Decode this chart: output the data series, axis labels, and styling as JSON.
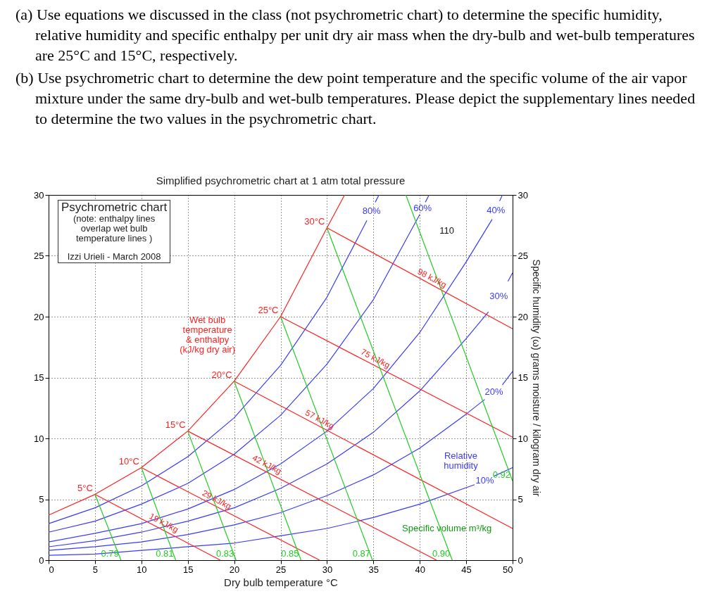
{
  "chart_data": {
    "type": "line",
    "title": "Simplified psychrometric chart at 1 atm total pressure",
    "xlabel": "Dry bulb temperature °C",
    "y2label": "Specific humidity (ω) grams moisture / kilogram dry air",
    "xlim": [
      0,
      50
    ],
    "xticks": [
      0,
      5,
      10,
      15,
      20,
      25,
      30,
      35,
      40,
      45,
      50
    ],
    "ylim": [
      0,
      30
    ],
    "yticks": [
      0,
      5,
      10,
      15,
      20,
      25,
      30
    ],
    "y2lim": [
      0,
      30
    ],
    "y2ticks": [
      0,
      5,
      10,
      15,
      20,
      25,
      30
    ],
    "grid": true,
    "series": [
      {
        "color": "#ff2020",
        "x": [
          0,
          5,
          10,
          15,
          20,
          25,
          30,
          31.9
        ],
        "values": [
          3.7,
          5.4,
          7.6,
          10.6,
          14.7,
          20.0,
          27.3,
          30
        ]
      },
      {
        "name": "80%",
        "color": "#3a3aff",
        "x": [
          0,
          5,
          10,
          15,
          20,
          25,
          30,
          34.3,
          34.8,
          35.2,
          35.6
        ],
        "values": [
          3.0,
          4.3,
          6.1,
          8.5,
          11.7,
          16.0,
          21.6,
          27.9,
          null,
          29.4,
          30
        ]
      },
      {
        "name": "60%",
        "color": "#3a3aff",
        "x": [
          0,
          5,
          10,
          15,
          20,
          25,
          30,
          35,
          40,
          40.3,
          40.6,
          41
        ],
        "values": [
          2.3,
          3.2,
          4.6,
          6.3,
          8.7,
          11.9,
          16.1,
          21.4,
          28.4,
          null,
          29.4,
          30
        ]
      },
      {
        "name": "40%",
        "color": "#3a3aff",
        "x": [
          0,
          5,
          10,
          15,
          20,
          25,
          30,
          35,
          40,
          45,
          47.8,
          48.2,
          48.6,
          48.9
        ],
        "values": [
          1.5,
          2.2,
          3.0,
          4.2,
          5.8,
          7.9,
          10.6,
          14.1,
          18.7,
          24.5,
          28.0,
          null,
          29.5,
          30
        ]
      },
      {
        "name": "30%",
        "color": "#3a3aff",
        "x": [
          0,
          5,
          10,
          15,
          20,
          25,
          30,
          35,
          40,
          45,
          47.4,
          48.5,
          49.5,
          50
        ],
        "values": [
          1.1,
          1.6,
          2.3,
          3.2,
          4.3,
          5.9,
          7.9,
          10.5,
          13.9,
          18.2,
          20.4,
          null,
          22.9,
          23.6
        ]
      },
      {
        "name": "20%",
        "color": "#3a3aff",
        "x": [
          0,
          5,
          10,
          15,
          20,
          25,
          30,
          35,
          40,
          45,
          47.0,
          48,
          48.9,
          50
        ],
        "values": [
          0.8,
          1.1,
          1.5,
          2.1,
          2.9,
          3.9,
          5.3,
          7.0,
          9.2,
          12.0,
          13.2,
          null,
          14.4,
          15.5
        ]
      },
      {
        "name": "10%",
        "color": "#3a3aff",
        "x": [
          0,
          5,
          10,
          15,
          20,
          25,
          30,
          35,
          40,
          45.9,
          47,
          48,
          50
        ],
        "values": [
          0.4,
          0.5,
          0.8,
          1.1,
          1.4,
          2.0,
          2.6,
          3.5,
          4.6,
          6.2,
          null,
          6.9,
          7.6
        ]
      },
      {
        "name": "5°C",
        "color": "#ff2020",
        "x": [
          5,
          18.5
        ],
        "values": [
          5.4,
          0
        ]
      },
      {
        "name": "10°C",
        "color": "#ff2020",
        "x": [
          10,
          29.2
        ],
        "values": [
          7.6,
          0
        ]
      },
      {
        "name": "15°C",
        "color": "#ff2020",
        "x": [
          15,
          41.8
        ],
        "values": [
          10.6,
          0
        ]
      },
      {
        "name": "20°C",
        "color": "#ff2020",
        "x": [
          20,
          50
        ],
        "values": [
          14.7,
          2.6
        ]
      },
      {
        "name": "25°C",
        "color": "#ff2020",
        "x": [
          25,
          50
        ],
        "values": [
          20.0,
          10.1
        ]
      },
      {
        "name": "30°C",
        "color": "#ff2020",
        "x": [
          30,
          50
        ],
        "values": [
          27.3,
          19.0
        ]
      },
      {
        "name": "0.79",
        "color": "#22cc22",
        "x": [
          7.8,
          5.0
        ],
        "values": [
          0,
          5.4
        ]
      },
      {
        "name": "0.81",
        "color": "#22cc22",
        "x": [
          13.7,
          10.0
        ],
        "values": [
          0,
          7.6
        ]
      },
      {
        "name": "0.83",
        "color": "#22cc22",
        "x": [
          20.2,
          15.0
        ],
        "values": [
          0,
          10.6
        ]
      },
      {
        "name": "0.85",
        "color": "#22cc22",
        "x": [
          27.2,
          20.0
        ],
        "values": [
          0,
          14.7
        ]
      },
      {
        "name": "0.87",
        "color": "#22cc22",
        "x": [
          34.9,
          25.0
        ],
        "values": [
          0,
          20.0
        ]
      },
      {
        "name": "0.90",
        "color": "#22cc22",
        "x": [
          43.5,
          30.0
        ],
        "values": [
          0,
          27.3
        ]
      },
      {
        "name": "0.92",
        "color": "#22cc22",
        "x": [
          50,
          38.5
        ],
        "values": [
          6.5,
          30
        ]
      }
    ],
    "annotations": [
      "(a) Use equations we discussed in the class (not psychrometric chart) to determine the specific humidity, relative humidity and specific enthalpy per unit dry air mass when the dry-bulb and wet-bulb temperatures are 25°C and 15°C, respectively.",
      "(b) Use psychrometric chart to determine the dew point temperature and the specific volume of the air vapor mixture under the same dry-bulb and wet-bulb temperatures. Please depict the supplementary lines needed to determine the two values in the psychrometric chart.",
      "Psychrometric chart",
      "(note: enthalpy lines\noverlap wet bulb\ntemperature lines )",
      "Izzi Urieli - March 2008",
      "Wet bulb\ntemperature\n& enthalpy\n(kJ/kg dry air)",
      "Relative\nhumidity",
      "Specific volume m³/kg",
      "110",
      {
        "text": "19 kJ/kg",
        "x": 12.1,
        "y": 2.6
      },
      {
        "text": "29 kJ/kg",
        "x": 17.8,
        "y": 4.5
      },
      {
        "text": "42 kJ/kg",
        "x": 23.2,
        "y": 7.4
      },
      {
        "text": "57 kJ/kg",
        "x": 28.9,
        "y": 11.1
      },
      {
        "text": "75 kJ/kg",
        "x": 34.9,
        "y": 16.1
      },
      {
        "text": "98 kJ/kg",
        "x": 41.0,
        "y": 22.7
      }
    ]
  }
}
